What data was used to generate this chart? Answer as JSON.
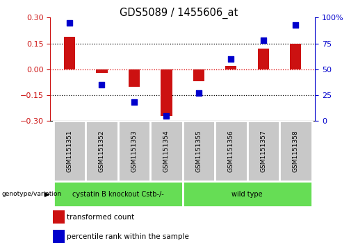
{
  "title": "GDS5089 / 1455606_at",
  "samples": [
    "GSM1151351",
    "GSM1151352",
    "GSM1151353",
    "GSM1151354",
    "GSM1151355",
    "GSM1151356",
    "GSM1151357",
    "GSM1151358"
  ],
  "transformed_count": [
    0.19,
    -0.02,
    -0.1,
    -0.27,
    -0.07,
    0.02,
    0.12,
    0.15
  ],
  "percentile_rank": [
    95,
    35,
    18,
    5,
    27,
    60,
    78,
    93
  ],
  "ylim_left": [
    -0.3,
    0.3
  ],
  "ylim_right": [
    0,
    100
  ],
  "yticks_left": [
    -0.3,
    -0.15,
    0,
    0.15,
    0.3
  ],
  "yticks_right": [
    0,
    25,
    50,
    75,
    100
  ],
  "hlines": [
    0.15,
    0,
    -0.15
  ],
  "group1_label": "cystatin B knockout Cstb-/-",
  "group1_count": 4,
  "group2_label": "wild type",
  "group2_count": 4,
  "group_color": "#66dd55",
  "bar_color": "#cc1111",
  "dot_color": "#0000cc",
  "legend_label_bar": "transformed count",
  "legend_label_dot": "percentile rank within the sample",
  "tick_color_left": "#cc1111",
  "tick_color_right": "#0000cc",
  "bar_width": 0.35,
  "figsize": [
    5.15,
    3.63
  ],
  "dpi": 100,
  "gray_box_color": "#c8c8c8"
}
